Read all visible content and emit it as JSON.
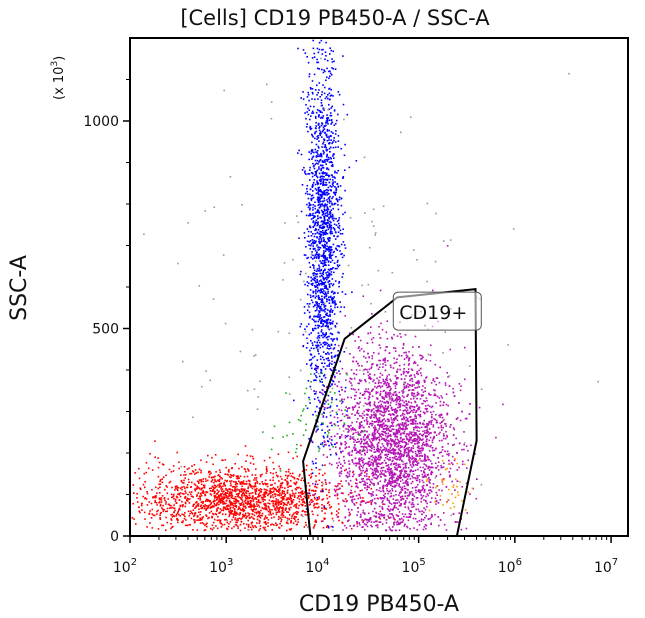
{
  "chart_data": {
    "type": "scatter",
    "title": "[Cells] CD19 PB450-A / SSC-A",
    "xlabel": "CD19 PB450-A",
    "ylabel": "SSC-A",
    "y_multiplier": "(x 10",
    "y_multiplier_exp": "3",
    "y_multiplier_close": ")",
    "x_scale": "log",
    "y_scale": "linear",
    "xlim": [
      100,
      15000000
    ],
    "ylim": [
      0,
      1200
    ],
    "x_ticks": [
      {
        "value": 100,
        "base": "10",
        "exp": "2"
      },
      {
        "value": 1000,
        "base": "10",
        "exp": "3"
      },
      {
        "value": 10000,
        "base": "10",
        "exp": "4"
      },
      {
        "value": 100000,
        "base": "10",
        "exp": "5"
      },
      {
        "value": 1000000,
        "base": "10",
        "exp": "6"
      },
      {
        "value": 10000000,
        "base": "10",
        "exp": "7"
      }
    ],
    "y_ticks": [
      {
        "value": 0,
        "label": "0"
      },
      {
        "value": 500,
        "label": "500"
      },
      {
        "value": 1000,
        "label": "1000"
      }
    ],
    "grid": false,
    "populations": [
      {
        "color": "#ff0000",
        "log_x_center": 3.1,
        "log_x_spread": 0.55,
        "y_center": 90,
        "y_spread": 40,
        "count": 1800
      },
      {
        "color": "#0000ff",
        "log_x_center": 4.0,
        "log_x_spread": 0.09,
        "y_center": 720,
        "y_spread": 230,
        "count": 1700
      },
      {
        "color": "#b515b5",
        "log_x_center": 4.72,
        "log_x_spread": 0.3,
        "y_center": 230,
        "y_spread": 110,
        "count": 3200
      },
      {
        "color": "#22aa22",
        "log_x_center": 3.85,
        "log_x_spread": 0.2,
        "y_center": 270,
        "y_spread": 60,
        "count": 60
      },
      {
        "color": "#ff9900",
        "log_x_center": 5.3,
        "log_x_spread": 0.12,
        "y_center": 120,
        "y_spread": 40,
        "count": 40
      },
      {
        "color": "#999999",
        "log_x_center": 4.3,
        "log_x_spread": 0.9,
        "y_center": 500,
        "y_spread": 300,
        "count": 150
      }
    ],
    "gates": [
      {
        "label": "CD19+",
        "color": "#000000",
        "polygon": [
          [
            7500,
            0
          ],
          [
            6300,
            180
          ],
          [
            17000,
            475
          ],
          [
            60000,
            575
          ],
          [
            390000,
            595
          ],
          [
            400000,
            230
          ],
          [
            250000,
            0
          ]
        ]
      }
    ]
  }
}
